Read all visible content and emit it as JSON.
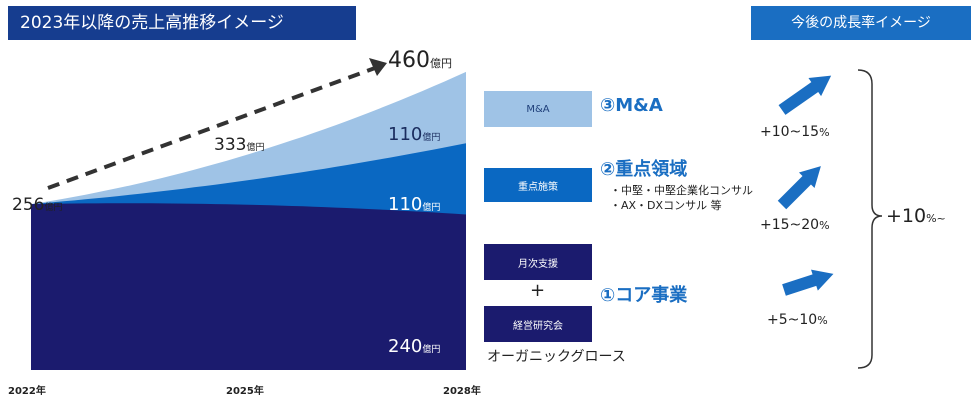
{
  "header": {
    "title": "2023年以降の売上高推移イメージ",
    "right_title": "今後の成長率イメージ"
  },
  "chart_data": {
    "type": "area",
    "x": [
      "2022年",
      "2025年",
      "2028年"
    ],
    "stacked": true,
    "total_labels": [
      {
        "x": "2022年",
        "value": "256",
        "unit": "億円"
      },
      {
        "x": "2025年",
        "value": "333",
        "unit": "億円"
      },
      {
        "x": "2028年",
        "value": "460",
        "unit": "億円"
      }
    ],
    "series": [
      {
        "name": "オーガニックグロース",
        "values": [
          256,
          255,
          240
        ],
        "end_label": "240",
        "unit": "億円",
        "color": "#1b1b6e"
      },
      {
        "name": "重点施策",
        "values": [
          0,
          38,
          110
        ],
        "end_label": "110",
        "unit": "億円",
        "color": "#0a68c2"
      },
      {
        "name": "M&A",
        "values": [
          0,
          40,
          110
        ],
        "end_label": "110",
        "unit": "億円",
        "color": "#9fc3e6"
      }
    ],
    "colors": {
      "core": "#1b1b6e",
      "focus": "#0a68c2",
      "ma": "#9fc3e6",
      "accent": "#1a6ec2",
      "title_bg": "#163d8f"
    }
  },
  "legend": {
    "ma_box": "M&A",
    "focus_box": "重点施策",
    "core_box1": "月次支援",
    "plus": "+",
    "core_box2": "経営研究会",
    "organic": "オーガニックグロース"
  },
  "segments": {
    "ma": "③M&A",
    "focus": "②重点領域",
    "focus_detail": [
      "・中堅・中堅企業化コンサル",
      "・AX・DXコンサル 等"
    ],
    "core": "①コア事業"
  },
  "growth": {
    "ma": "+10~15",
    "focus": "+15~20",
    "core": "+5~10",
    "total": "+10",
    "percent": "%",
    "total_suffix": "%~"
  }
}
